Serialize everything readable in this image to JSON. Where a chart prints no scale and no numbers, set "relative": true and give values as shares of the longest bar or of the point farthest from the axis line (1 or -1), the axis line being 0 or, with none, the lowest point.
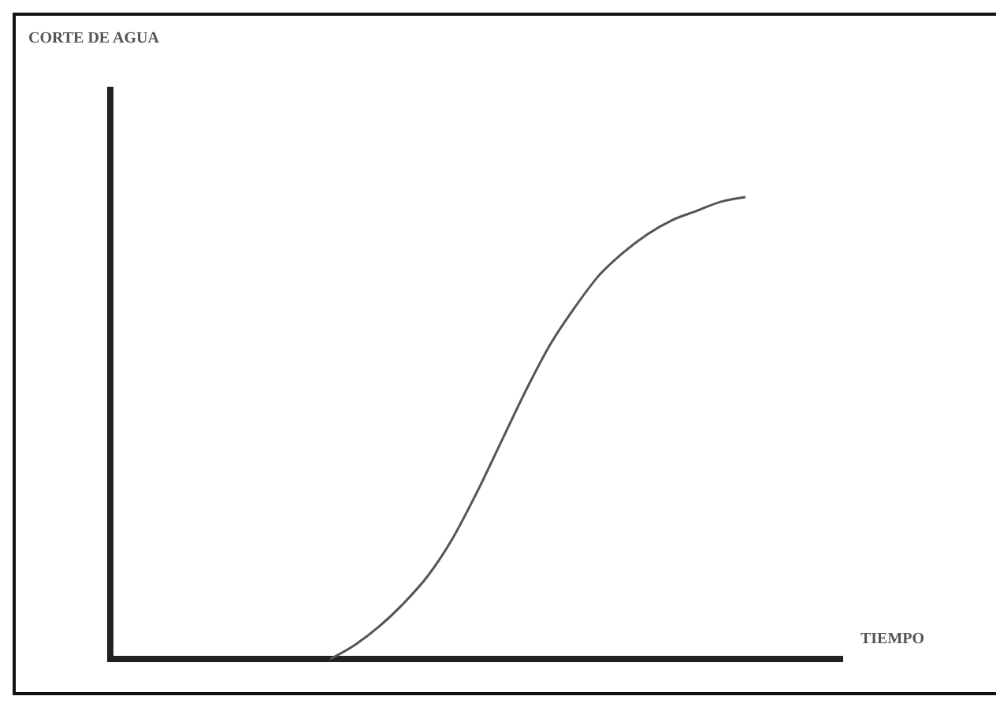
{
  "chart_data": {
    "type": "line",
    "relative": true,
    "xlabel": "TIEMPO",
    "annotations": [
      "CORTE DE AGUA"
    ],
    "marker": "none",
    "line_style": "solid",
    "categories": [
      null,
      null,
      null,
      null,
      null,
      null,
      null,
      null,
      null,
      null,
      null,
      null,
      null,
      null,
      null,
      null,
      null,
      null,
      null,
      null,
      null,
      null,
      null,
      null,
      null,
      null,
      null,
      null,
      null,
      null,
      null
    ],
    "series": [
      {
        "color": "#555555",
        "values": [
          null,
          null,
          null,
          null,
          null,
          null,
          null,
          null,
          null,
          0,
          0.03,
          0.07,
          0.12,
          0.18,
          0.26,
          0.36,
          0.47,
          0.58,
          0.68,
          0.76,
          0.83,
          0.88,
          0.92,
          0.95,
          0.97,
          0.99,
          1,
          null,
          null,
          null,
          null
        ]
      }
    ]
  }
}
